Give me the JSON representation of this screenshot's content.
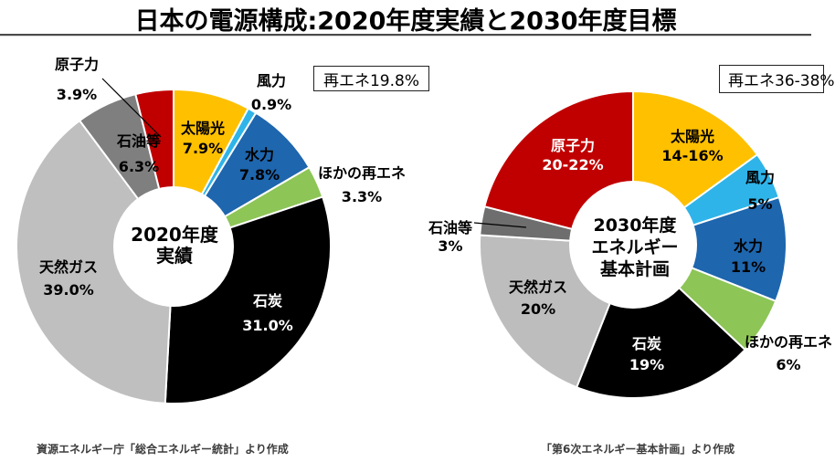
{
  "title": "日本の電源構成:2020年度実績と2030年度目標",
  "chart_data": [
    {
      "type": "pie",
      "subtype": "donut",
      "id": "fy2020",
      "center_label": [
        "2020年度",
        "実績"
      ],
      "annotation": "再エネ19.8%",
      "source_note": "資源エネルギー庁「総合エネルギー統計」より作成",
      "slices": [
        {
          "id": "solar",
          "label": "太陽光",
          "value": 7.9,
          "value_label": "7.9%",
          "color": "#FFC000",
          "text_color": "#000000"
        },
        {
          "id": "wind",
          "label": "風力",
          "value": 0.9,
          "value_label": "0.9%",
          "color": "#2FB4E9",
          "text_color": "#000000"
        },
        {
          "id": "hydro",
          "label": "水力",
          "value": 7.8,
          "value_label": "7.8%",
          "color": "#1E66AE",
          "text_color": "#000000"
        },
        {
          "id": "other-renewables",
          "label": "ほかの再エネ",
          "value": 3.3,
          "value_label": "3.3%",
          "color": "#8DC556",
          "text_color": "#000000"
        },
        {
          "id": "coal",
          "label": "石炭",
          "value": 31.0,
          "value_label": "31.0%",
          "color": "#000000",
          "text_color": "#ffffff"
        },
        {
          "id": "lng",
          "label": "天然ガス",
          "value": 39.0,
          "value_label": "39.0%",
          "color": "#BFBFBF",
          "text_color": "#000000"
        },
        {
          "id": "oil",
          "label": "石油等",
          "value": 6.3,
          "value_label": "6.3%",
          "color": "#7F7F7F",
          "text_color": "#000000"
        },
        {
          "id": "nuclear",
          "label": "原子力",
          "value": 3.9,
          "value_label": "3.9%",
          "color": "#C00000",
          "text_color": "#000000"
        }
      ]
    },
    {
      "type": "pie",
      "subtype": "donut",
      "id": "fy2030",
      "center_label": [
        "2030年度",
        "エネルギー",
        "基本計画"
      ],
      "annotation": "再エネ36-38%",
      "source_note": "「第6次エネルギー基本計画」より作成",
      "slices": [
        {
          "id": "solar",
          "label": "太陽光",
          "value": 15,
          "value_label": "14-16%",
          "color": "#FFC000",
          "text_color": "#000000"
        },
        {
          "id": "wind",
          "label": "風力",
          "value": 5,
          "value_label": "5%",
          "color": "#2FB4E9",
          "text_color": "#000000"
        },
        {
          "id": "hydro",
          "label": "水力",
          "value": 11,
          "value_label": "11%",
          "color": "#1E66AE",
          "text_color": "#000000"
        },
        {
          "id": "other-renewables",
          "label": "ほかの再エネ",
          "value": 6,
          "value_label": "6%",
          "color": "#8DC556",
          "text_color": "#000000"
        },
        {
          "id": "coal",
          "label": "石炭",
          "value": 19,
          "value_label": "19%",
          "color": "#000000",
          "text_color": "#ffffff"
        },
        {
          "id": "lng",
          "label": "天然ガス",
          "value": 20,
          "value_label": "20%",
          "color": "#BDBDBD",
          "text_color": "#000000"
        },
        {
          "id": "oil",
          "label": "石油等",
          "value": 3,
          "value_label": "3%",
          "color": "#6E6E6E",
          "text_color": "#000000"
        },
        {
          "id": "nuclear",
          "label": "原子力",
          "value": 21,
          "value_label": "20-22%",
          "color": "#C00000",
          "text_color": "#ffffff"
        }
      ]
    }
  ]
}
